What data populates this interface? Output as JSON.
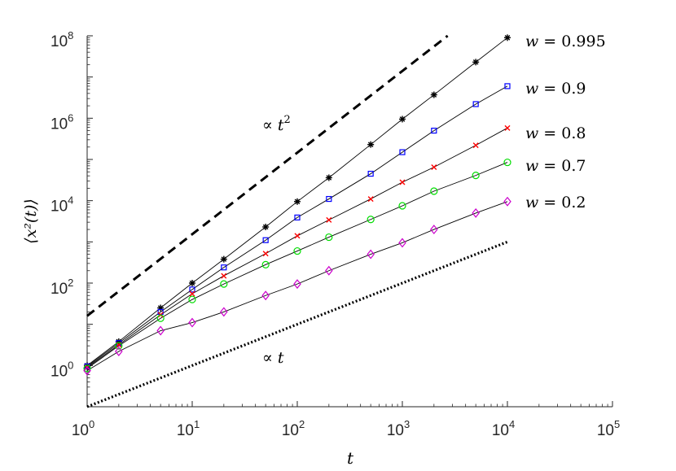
{
  "chart_data": {
    "type": "scatter",
    "title": "",
    "xlabel": "t",
    "ylabel": "⟨x²(t)⟩",
    "xscale": "log",
    "yscale": "log",
    "xlim": [
      1,
      100000
    ],
    "ylim": [
      0.1,
      100000000
    ],
    "x_ticks": [
      {
        "base": "10",
        "exp": "0",
        "value": 1
      },
      {
        "base": "10",
        "exp": "1",
        "value": 10
      },
      {
        "base": "10",
        "exp": "2",
        "value": 100
      },
      {
        "base": "10",
        "exp": "3",
        "value": 1000
      },
      {
        "base": "10",
        "exp": "4",
        "value": 10000
      },
      {
        "base": "10",
        "exp": "5",
        "value": 100000
      }
    ],
    "y_ticks": [
      {
        "base": "10",
        "exp": "0",
        "value": 1
      },
      {
        "base": "10",
        "exp": "2",
        "value": 100
      },
      {
        "base": "10",
        "exp": "4",
        "value": 10000
      },
      {
        "base": "10",
        "exp": "6",
        "value": 1000000
      },
      {
        "base": "10",
        "exp": "8",
        "value": 100000000
      }
    ],
    "grid": false,
    "x": [
      1,
      2,
      5,
      10,
      20,
      50,
      100,
      200,
      500,
      1000,
      2000,
      5000,
      10000
    ],
    "series": [
      {
        "name": "w = 0.995",
        "label_parts": [
          "w",
          " = 0.995"
        ],
        "marker": "asterisk",
        "color": "#000000",
        "values": [
          1.0,
          3.8,
          25,
          100,
          380,
          2300,
          9500,
          36000,
          230000,
          950000,
          3700000,
          23000000,
          90000000
        ]
      },
      {
        "name": "w = 0.9",
        "label_parts": [
          "w",
          " = 0.9"
        ],
        "marker": "square",
        "color": "#0000ff",
        "values": [
          0.95,
          3.5,
          20,
          70,
          240,
          1100,
          3900,
          11000,
          45000,
          150000,
          500000,
          2200000,
          6000000
        ]
      },
      {
        "name": "w = 0.8",
        "label_parts": [
          "w",
          " = 0.8"
        ],
        "marker": "x",
        "color": "#ff0000",
        "values": [
          0.9,
          3.2,
          17,
          55,
          150,
          520,
          1400,
          3400,
          11000,
          28000,
          65000,
          220000,
          580000
        ]
      },
      {
        "name": "w = 0.7",
        "label_parts": [
          "w",
          " = 0.7"
        ],
        "marker": "circle",
        "color": "#00dd00",
        "values": [
          0.85,
          3.0,
          14,
          40,
          95,
          280,
          600,
          1300,
          3500,
          7500,
          17000,
          41000,
          85000
        ]
      },
      {
        "name": "w = 0.2",
        "label_parts": [
          "w",
          " = 0.2"
        ],
        "marker": "diamond",
        "color": "#cc00cc",
        "values": [
          0.75,
          2.2,
          7,
          11,
          20,
          50,
          95,
          200,
          500,
          950,
          2000,
          5000,
          9500
        ]
      }
    ],
    "reference_lines": [
      {
        "name": "∝ t²",
        "label_base": "∝ ",
        "label_var": "t",
        "label_exp": "2",
        "style": "dashed",
        "points": [
          [
            1,
            16
          ],
          [
            2700,
            100000000
          ]
        ]
      },
      {
        "name": "∝ t",
        "label_base": "∝ ",
        "label_var": "t",
        "label_exp": "",
        "style": "dotted",
        "points": [
          [
            1,
            0.1
          ],
          [
            10000,
            1000
          ]
        ]
      }
    ]
  }
}
